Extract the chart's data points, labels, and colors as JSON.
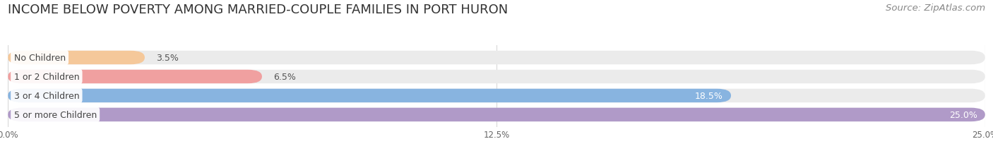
{
  "title": "INCOME BELOW POVERTY AMONG MARRIED-COUPLE FAMILIES IN PORT HURON",
  "source": "Source: ZipAtlas.com",
  "categories": [
    "No Children",
    "1 or 2 Children",
    "3 or 4 Children",
    "5 or more Children"
  ],
  "values": [
    3.5,
    6.5,
    18.5,
    25.0
  ],
  "bar_colors": [
    "#f5c89a",
    "#f0a0a0",
    "#88b4e0",
    "#b09ac8"
  ],
  "bar_bg_color": "#ebebeb",
  "xlim": [
    0,
    25.0
  ],
  "xtick_labels": [
    "0.0%",
    "12.5%",
    "25.0%"
  ],
  "xtick_vals": [
    0.0,
    12.5,
    25.0
  ],
  "title_fontsize": 13,
  "source_fontsize": 9.5,
  "bar_height": 0.72,
  "background_color": "#ffffff",
  "grid_color": "#d8d8d8",
  "value_label_fontsize": 9,
  "cat_label_fontsize": 9
}
